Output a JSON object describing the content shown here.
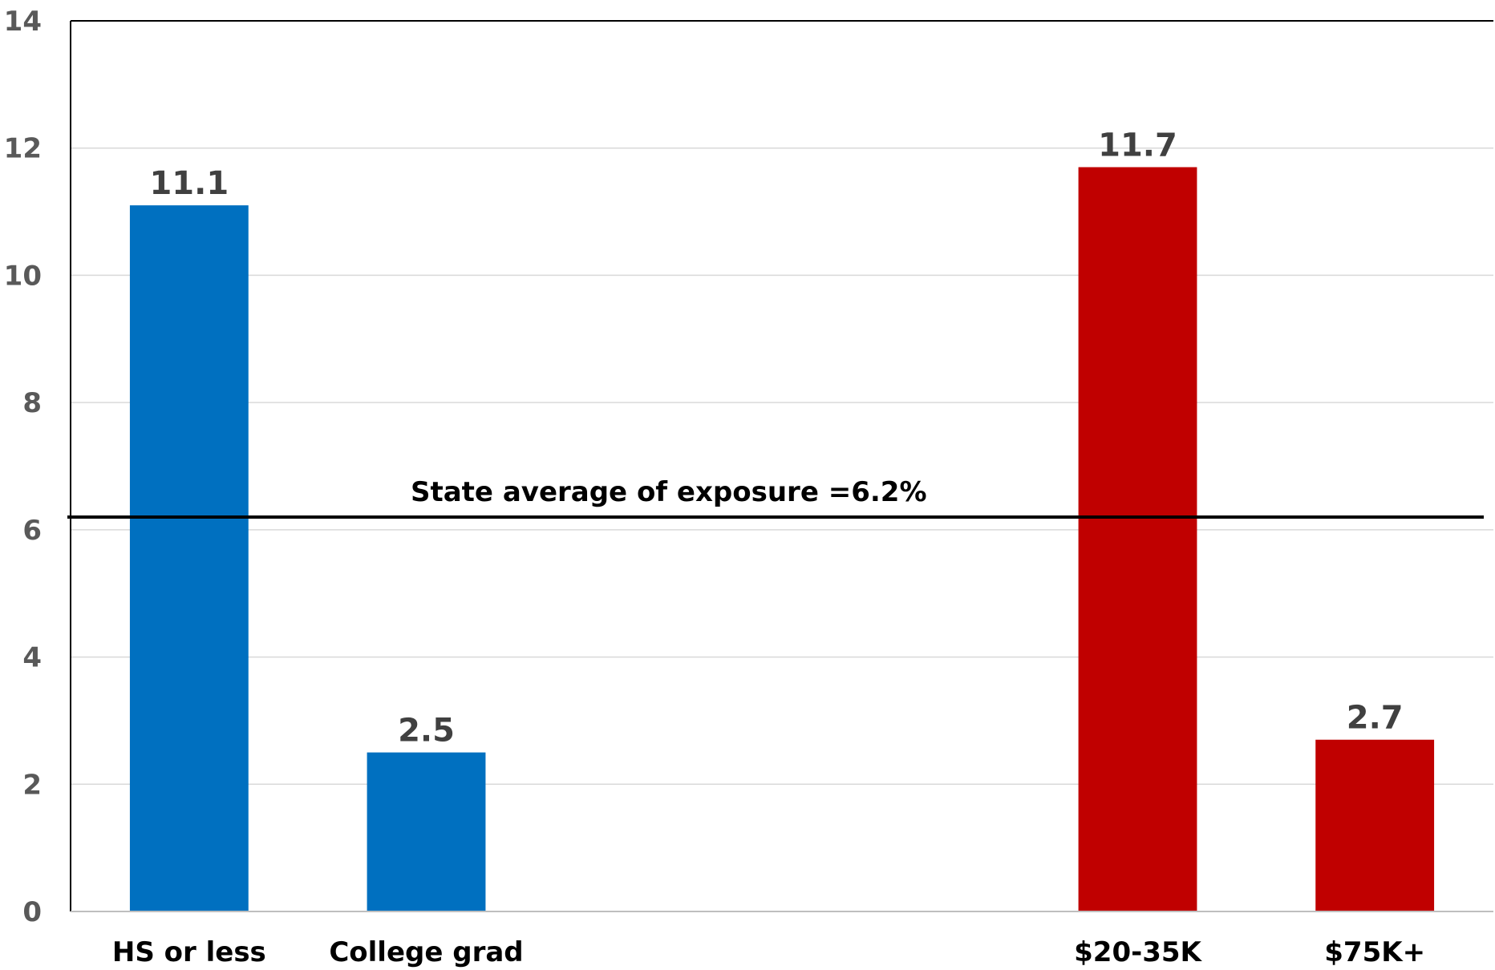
{
  "chart_data": {
    "type": "bar",
    "categories": [
      "HS or less",
      "College grad",
      "",
      "",
      "$20-35K",
      "$75K+"
    ],
    "values": [
      11.1,
      2.5,
      null,
      null,
      11.7,
      2.7
    ],
    "bar_colors": [
      "#0070C0",
      "#0070C0",
      null,
      null,
      "#C00000",
      "#C00000"
    ],
    "data_labels": [
      "11.1",
      "2.5",
      "",
      "",
      "11.7",
      "2.7"
    ],
    "ylim": [
      0,
      14
    ],
    "yticks": [
      0,
      2,
      4,
      6,
      8,
      10,
      12,
      14
    ],
    "gridlines": true,
    "legend": false,
    "reference_line": {
      "value": 6.2,
      "label": "State average of exposure =6.2%",
      "color": "#000000"
    },
    "gridline_color": "#d9d9d9",
    "axis_color": "#000000"
  }
}
